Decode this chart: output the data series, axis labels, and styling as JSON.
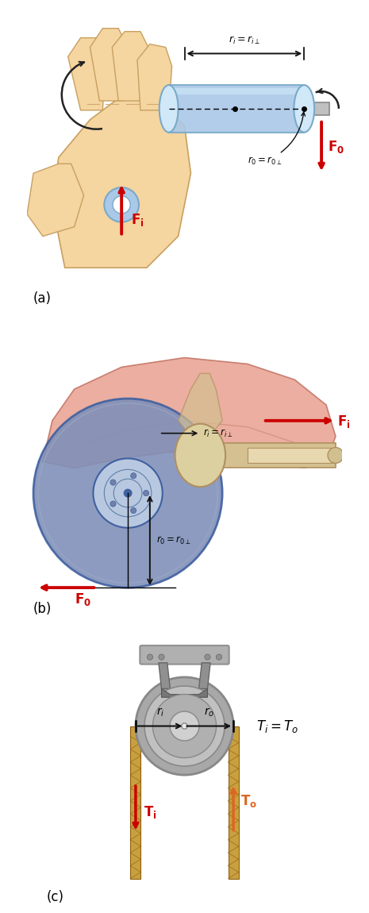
{
  "fig_width": 4.65,
  "fig_height": 11.5,
  "dpi": 100,
  "bg_color": "#ffffff",
  "panel_a": {
    "label": "(a)",
    "fi_arrow_color": "#cc0000",
    "fo_arrow_color": "#cc0000",
    "fi_label": "$\\mathbf{F_i}$",
    "fo_label": "$\\mathbf{F_0}$",
    "ri_label": "$r_i = r_{i\\perp}$",
    "ro_label": "$r_0=r_{0\\perp}$",
    "hand_color": "#f5d5a0",
    "hand_edge": "#c8a060",
    "crank_color": "#aac8e8",
    "crank_dark": "#7aaac8",
    "crank_light": "#d0e8f8"
  },
  "panel_b": {
    "label": "(b)",
    "fi_label": "$\\mathbf{F_i}$",
    "fo_label": "$\\mathbf{F_0}$",
    "ri_label": "$r_i = r_{i\\perp}$",
    "ro_label": "$r_0 = r_{0\\perp}$",
    "fi_arrow_color": "#cc0000",
    "fo_arrow_color": "#cc0000",
    "wheel_color": "#8090b8",
    "wheel_light": "#a0b0cc",
    "axle_color": "#d4c090",
    "axle_dark": "#b09060",
    "fender_color": "#e8a090",
    "fender_edge": "#c07060"
  },
  "panel_c": {
    "label": "(c)",
    "ti_label": "$\\mathbf{T_i}$",
    "to_label": "$\\mathbf{T_o}$",
    "ri_label": "$r_i$",
    "ro_label": "$r_o$",
    "eq_label": "$T_i = T_o$",
    "ti_arrow_color": "#cc0000",
    "to_arrow_color": "#dd6622",
    "pulley_outer": "#a8a8a8",
    "pulley_mid": "#c0c0c0",
    "pulley_inner": "#b0b0b0",
    "pulley_dark": "#888888",
    "rope_color": "#c8a040",
    "rope_dark": "#906010",
    "bracket_color": "#909090",
    "bracket_light": "#b0b0b0"
  }
}
